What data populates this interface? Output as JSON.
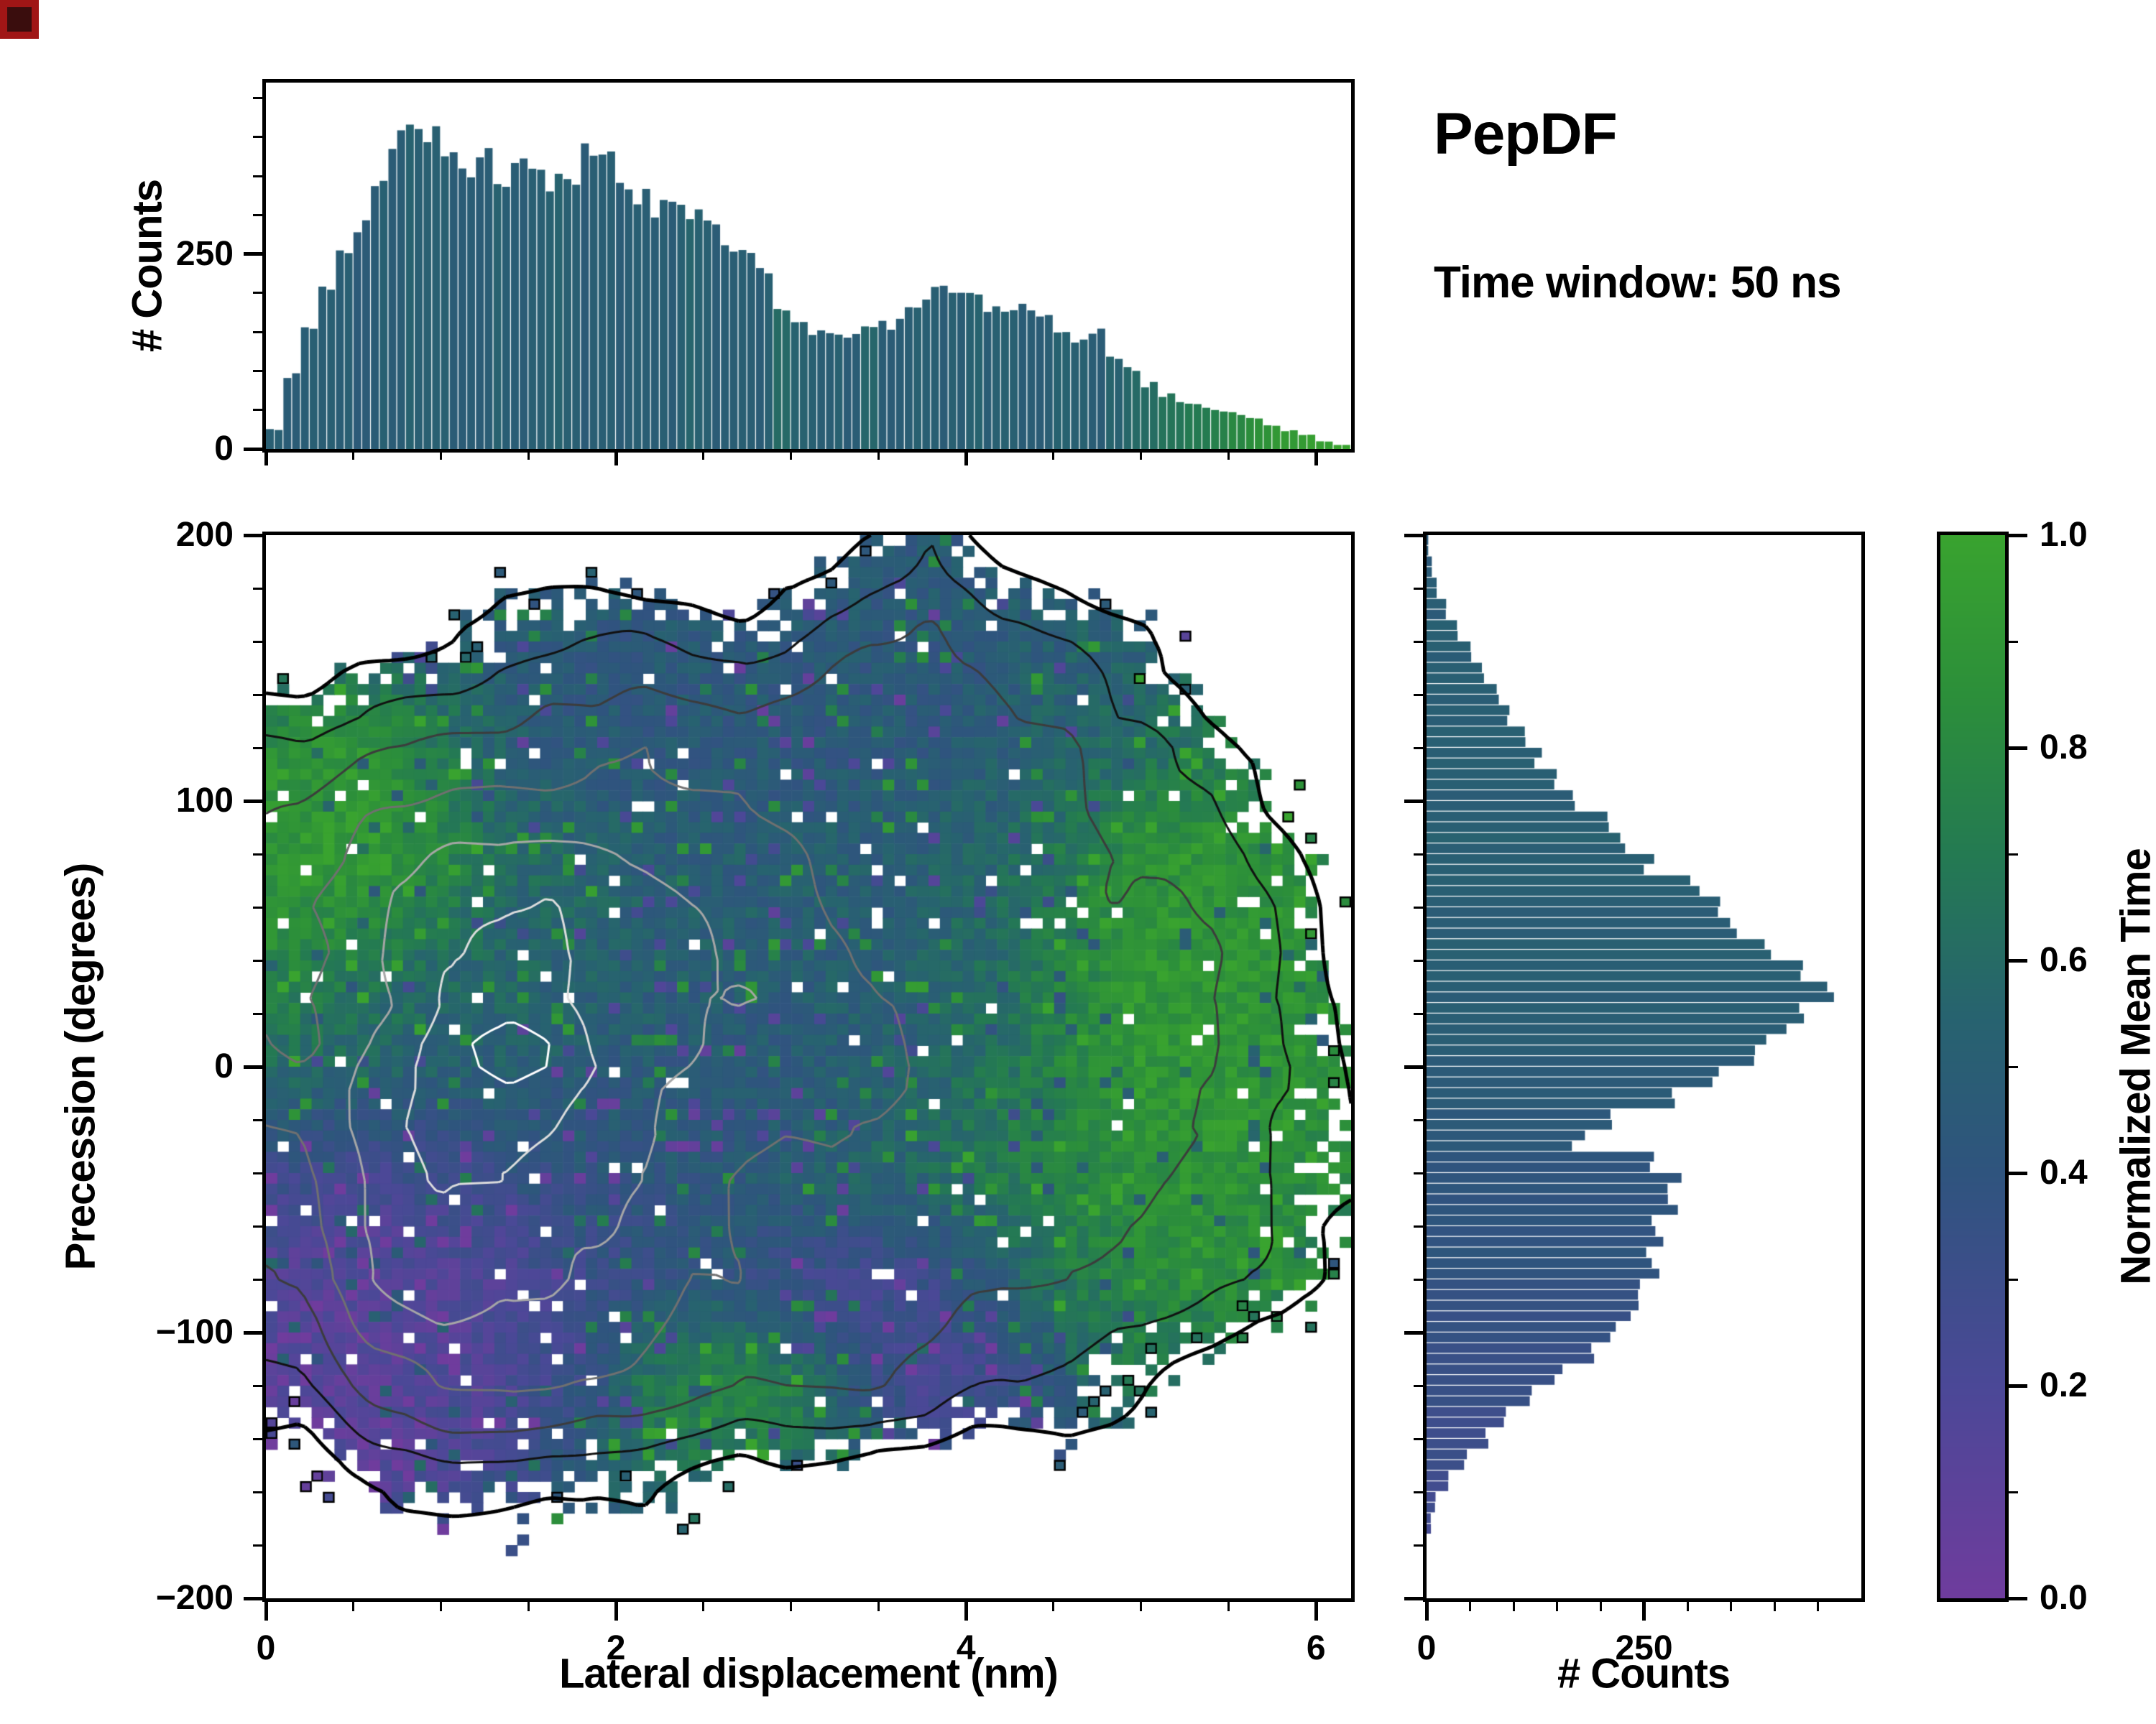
{
  "title": {
    "name": "PepDF",
    "subtitle": "Time window: 50 ns"
  },
  "colors": {
    "background": "#ffffff",
    "axis": "#000000",
    "text": "#000000",
    "artifact": "#a01616",
    "colormap_stops": [
      [
        0.0,
        "#6f3c9d"
      ],
      [
        0.2,
        "#4b4897"
      ],
      [
        0.4,
        "#2f547e"
      ],
      [
        0.55,
        "#27636f"
      ],
      [
        0.7,
        "#247a52"
      ],
      [
        0.85,
        "#2c8f3a"
      ],
      [
        1.0,
        "#39a32f"
      ]
    ]
  },
  "chart_data": {
    "type": "heatmap",
    "description": "Joint distribution: 2D map of normalized mean time over lateral displacement vs precession, with marginal count histograms and colorbar.",
    "main_heatmap": {
      "xlabel": "Lateral displacement (nm)",
      "ylabel": "Precession (degrees)",
      "xlim": [
        0,
        6.2
      ],
      "ylim": [
        -200,
        200
      ],
      "x_ticks": [
        {
          "v": 0,
          "label": "0"
        },
        {
          "v": 2,
          "label": "2"
        },
        {
          "v": 4,
          "label": "4"
        },
        {
          "v": 6,
          "label": "6"
        }
      ],
      "y_ticks": [
        {
          "v": -200,
          "label": "−200"
        },
        {
          "v": -100,
          "label": "−100"
        },
        {
          "v": 0,
          "label": "0"
        },
        {
          "v": 100,
          "label": "100"
        },
        {
          "v": 200,
          "label": "200"
        }
      ],
      "x_minor_step": 0.5,
      "y_minor_step": 20,
      "grid": {
        "x0": 0.2,
        "dx": 0.4,
        "nx": 16,
        "y_top": 200,
        "dy": -40,
        "ny": 11
      },
      "mean_time_grid": [
        [
          0.5,
          0.5,
          0.5,
          0.5,
          0.5,
          0.5,
          0.5,
          0.48,
          0.45,
          0.45,
          0.48,
          0.5,
          0.5,
          0.5,
          0.5,
          0.5
        ],
        [
          0.6,
          0.55,
          0.5,
          0.46,
          0.45,
          0.45,
          0.45,
          0.45,
          0.45,
          0.45,
          0.46,
          0.5,
          0.52,
          0.52,
          0.5,
          0.5
        ],
        [
          0.85,
          0.9,
          0.7,
          0.5,
          0.45,
          0.45,
          0.44,
          0.44,
          0.45,
          0.46,
          0.5,
          0.55,
          0.62,
          0.7,
          0.72,
          0.72
        ],
        [
          0.92,
          0.95,
          0.8,
          0.6,
          0.55,
          0.5,
          0.5,
          0.5,
          0.5,
          0.52,
          0.56,
          0.7,
          0.85,
          0.9,
          0.86,
          0.8
        ],
        [
          0.8,
          0.7,
          0.6,
          0.55,
          0.55,
          0.52,
          0.5,
          0.5,
          0.5,
          0.55,
          0.62,
          0.76,
          0.9,
          0.9,
          0.88,
          0.85
        ],
        [
          0.6,
          0.55,
          0.52,
          0.5,
          0.48,
          0.46,
          0.45,
          0.46,
          0.5,
          0.56,
          0.66,
          0.8,
          0.9,
          0.9,
          0.88,
          0.85
        ],
        [
          0.3,
          0.26,
          0.3,
          0.35,
          0.4,
          0.42,
          0.45,
          0.5,
          0.55,
          0.6,
          0.7,
          0.8,
          0.86,
          0.9,
          0.85,
          0.8
        ],
        [
          0.15,
          0.12,
          0.15,
          0.2,
          0.3,
          0.36,
          0.42,
          0.32,
          0.25,
          0.3,
          0.5,
          0.7,
          0.8,
          0.85,
          0.8,
          0.75
        ],
        [
          0.1,
          0.12,
          0.15,
          0.22,
          0.35,
          0.7,
          0.8,
          0.75,
          0.4,
          0.22,
          0.28,
          0.5,
          0.68,
          0.62,
          0.6,
          0.6
        ],
        [
          0.15,
          0.16,
          0.2,
          0.3,
          0.5,
          0.6,
          0.65,
          0.6,
          0.5,
          0.42,
          0.4,
          0.4,
          0.4,
          0.4,
          0.4,
          0.4
        ],
        [
          0.25,
          0.25,
          0.28,
          0.32,
          0.45,
          0.5,
          0.52,
          0.5,
          0.45,
          0.42,
          0.4,
          0.4,
          0.4,
          0.4,
          0.4,
          0.4
        ]
      ],
      "density_grid": [
        [
          0,
          0,
          0,
          0,
          0,
          0,
          0,
          0.05,
          0.22,
          0.33,
          0.12,
          0.02,
          0,
          0,
          0,
          0
        ],
        [
          0.08,
          0.15,
          0.2,
          0.25,
          0.3,
          0.3,
          0.32,
          0.35,
          0.4,
          0.45,
          0.36,
          0.3,
          0.2,
          0.06,
          0,
          0
        ],
        [
          0.35,
          0.45,
          0.5,
          0.52,
          0.55,
          0.6,
          0.6,
          0.6,
          0.6,
          0.55,
          0.5,
          0.46,
          0.4,
          0.3,
          0.1,
          0.02
        ],
        [
          0.5,
          0.62,
          0.7,
          0.75,
          0.75,
          0.7,
          0.66,
          0.64,
          0.6,
          0.55,
          0.52,
          0.5,
          0.46,
          0.4,
          0.25,
          0.06
        ],
        [
          0.55,
          0.72,
          0.86,
          0.9,
          0.85,
          0.8,
          0.7,
          0.66,
          0.6,
          0.56,
          0.55,
          0.52,
          0.5,
          0.45,
          0.3,
          0.1
        ],
        [
          0.6,
          0.76,
          0.9,
          0.95,
          0.9,
          0.8,
          0.7,
          0.65,
          0.6,
          0.56,
          0.55,
          0.52,
          0.5,
          0.46,
          0.35,
          0.15
        ],
        [
          0.55,
          0.76,
          0.86,
          0.82,
          0.76,
          0.7,
          0.65,
          0.6,
          0.56,
          0.52,
          0.5,
          0.46,
          0.46,
          0.42,
          0.3,
          0.2
        ],
        [
          0.5,
          0.76,
          0.86,
          0.8,
          0.7,
          0.66,
          0.6,
          0.56,
          0.52,
          0.5,
          0.46,
          0.45,
          0.42,
          0.36,
          0.3,
          0.12
        ],
        [
          0.3,
          0.52,
          0.62,
          0.62,
          0.56,
          0.52,
          0.5,
          0.46,
          0.42,
          0.36,
          0.3,
          0.26,
          0.2,
          0.1,
          0.02,
          0
        ],
        [
          0.06,
          0.16,
          0.22,
          0.26,
          0.26,
          0.22,
          0.16,
          0.12,
          0.06,
          0.02,
          0,
          0,
          0,
          0,
          0,
          0
        ],
        [
          0,
          0,
          0,
          0,
          0,
          0,
          0,
          0,
          0,
          0,
          0,
          0,
          0,
          0,
          0,
          0
        ]
      ],
      "contour_levels": [
        {
          "t": 0.2,
          "color": "#000000",
          "lw": 5
        },
        {
          "t": 0.33,
          "color": "#111111",
          "lw": 3
        },
        {
          "t": 0.46,
          "color": "#3c3c3c",
          "lw": 3
        },
        {
          "t": 0.6,
          "color": "#707070",
          "lw": 3
        },
        {
          "t": 0.74,
          "color": "#a6a6a6",
          "lw": 3
        },
        {
          "t": 0.87,
          "color": "#dddddd",
          "lw": 3
        },
        {
          "t": 0.95,
          "color": "#ffffff",
          "lw": 3
        }
      ]
    },
    "top_histogram": {
      "ylabel": "# Counts",
      "bin_start": 0,
      "bin_width": 0.1,
      "ylim": [
        0,
        470
      ],
      "y_ticks": [
        {
          "v": 0,
          "label": "0"
        },
        {
          "v": 250,
          "label": "250"
        }
      ],
      "y_minor_step": 50,
      "values": [
        25,
        95,
        150,
        205,
        245,
        285,
        345,
        395,
        420,
        405,
        375,
        355,
        370,
        345,
        355,
        365,
        345,
        355,
        375,
        365,
        340,
        325,
        310,
        320,
        300,
        285,
        265,
        245,
        225,
        185,
        160,
        150,
        145,
        150,
        155,
        160,
        175,
        190,
        200,
        205,
        195,
        180,
        175,
        185,
        170,
        150,
        140,
        150,
        120,
        100,
        82,
        70,
        60,
        55,
        50,
        45,
        38,
        30,
        24,
        18,
        10,
        5
      ],
      "mean_time": [
        0.5,
        0.48,
        0.5,
        0.52,
        0.5,
        0.48,
        0.5,
        0.5,
        0.52,
        0.5,
        0.5,
        0.48,
        0.5,
        0.52,
        0.5,
        0.5,
        0.55,
        0.5,
        0.48,
        0.5,
        0.5,
        0.52,
        0.5,
        0.5,
        0.55,
        0.5,
        0.5,
        0.52,
        0.5,
        0.6,
        0.55,
        0.5,
        0.52,
        0.5,
        0.55,
        0.5,
        0.5,
        0.52,
        0.5,
        0.5,
        0.55,
        0.5,
        0.52,
        0.5,
        0.5,
        0.55,
        0.52,
        0.5,
        0.55,
        0.6,
        0.62,
        0.65,
        0.68,
        0.7,
        0.75,
        0.8,
        0.85,
        0.9,
        0.92,
        0.95,
        0.97,
        1.0
      ]
    },
    "right_histogram": {
      "xlabel": "# Counts",
      "bin_start": -200,
      "bin_width": 8,
      "xlim": [
        0,
        500
      ],
      "x_ticks": [
        {
          "v": 0,
          "label": "0"
        },
        {
          "v": 250,
          "label": "250"
        }
      ],
      "x_minor_step": 50,
      "values": [
        0,
        0,
        0,
        5,
        10,
        25,
        45,
        70,
        90,
        120,
        150,
        190,
        220,
        240,
        255,
        265,
        260,
        270,
        280,
        285,
        260,
        175,
        215,
        280,
        330,
        370,
        400,
        430,
        450,
        420,
        390,
        360,
        330,
        300,
        260,
        230,
        200,
        170,
        150,
        130,
        110,
        95,
        80,
        65,
        50,
        35,
        22,
        12,
        6,
        2
      ],
      "mean_time": [
        0.25,
        0.25,
        0.25,
        0.25,
        0.28,
        0.28,
        0.3,
        0.3,
        0.3,
        0.32,
        0.32,
        0.35,
        0.35,
        0.35,
        0.38,
        0.38,
        0.4,
        0.4,
        0.4,
        0.42,
        0.42,
        0.45,
        0.45,
        0.45,
        0.48,
        0.48,
        0.5,
        0.5,
        0.5,
        0.5,
        0.5,
        0.5,
        0.5,
        0.52,
        0.52,
        0.52,
        0.5,
        0.5,
        0.5,
        0.5,
        0.5,
        0.5,
        0.5,
        0.5,
        0.5,
        0.5,
        0.48,
        0.48,
        0.45,
        0.45
      ]
    },
    "colorbar": {
      "label": "Normalized Mean Time",
      "range": [
        0,
        1
      ],
      "ticks": [
        {
          "v": 0,
          "label": "0.0"
        },
        {
          "v": 0.2,
          "label": "0.2"
        },
        {
          "v": 0.4,
          "label": "0.4"
        },
        {
          "v": 0.6,
          "label": "0.6"
        },
        {
          "v": 0.8,
          "label": "0.8"
        },
        {
          "v": 1,
          "label": "1.0"
        }
      ],
      "minor_step": 0.1
    }
  }
}
